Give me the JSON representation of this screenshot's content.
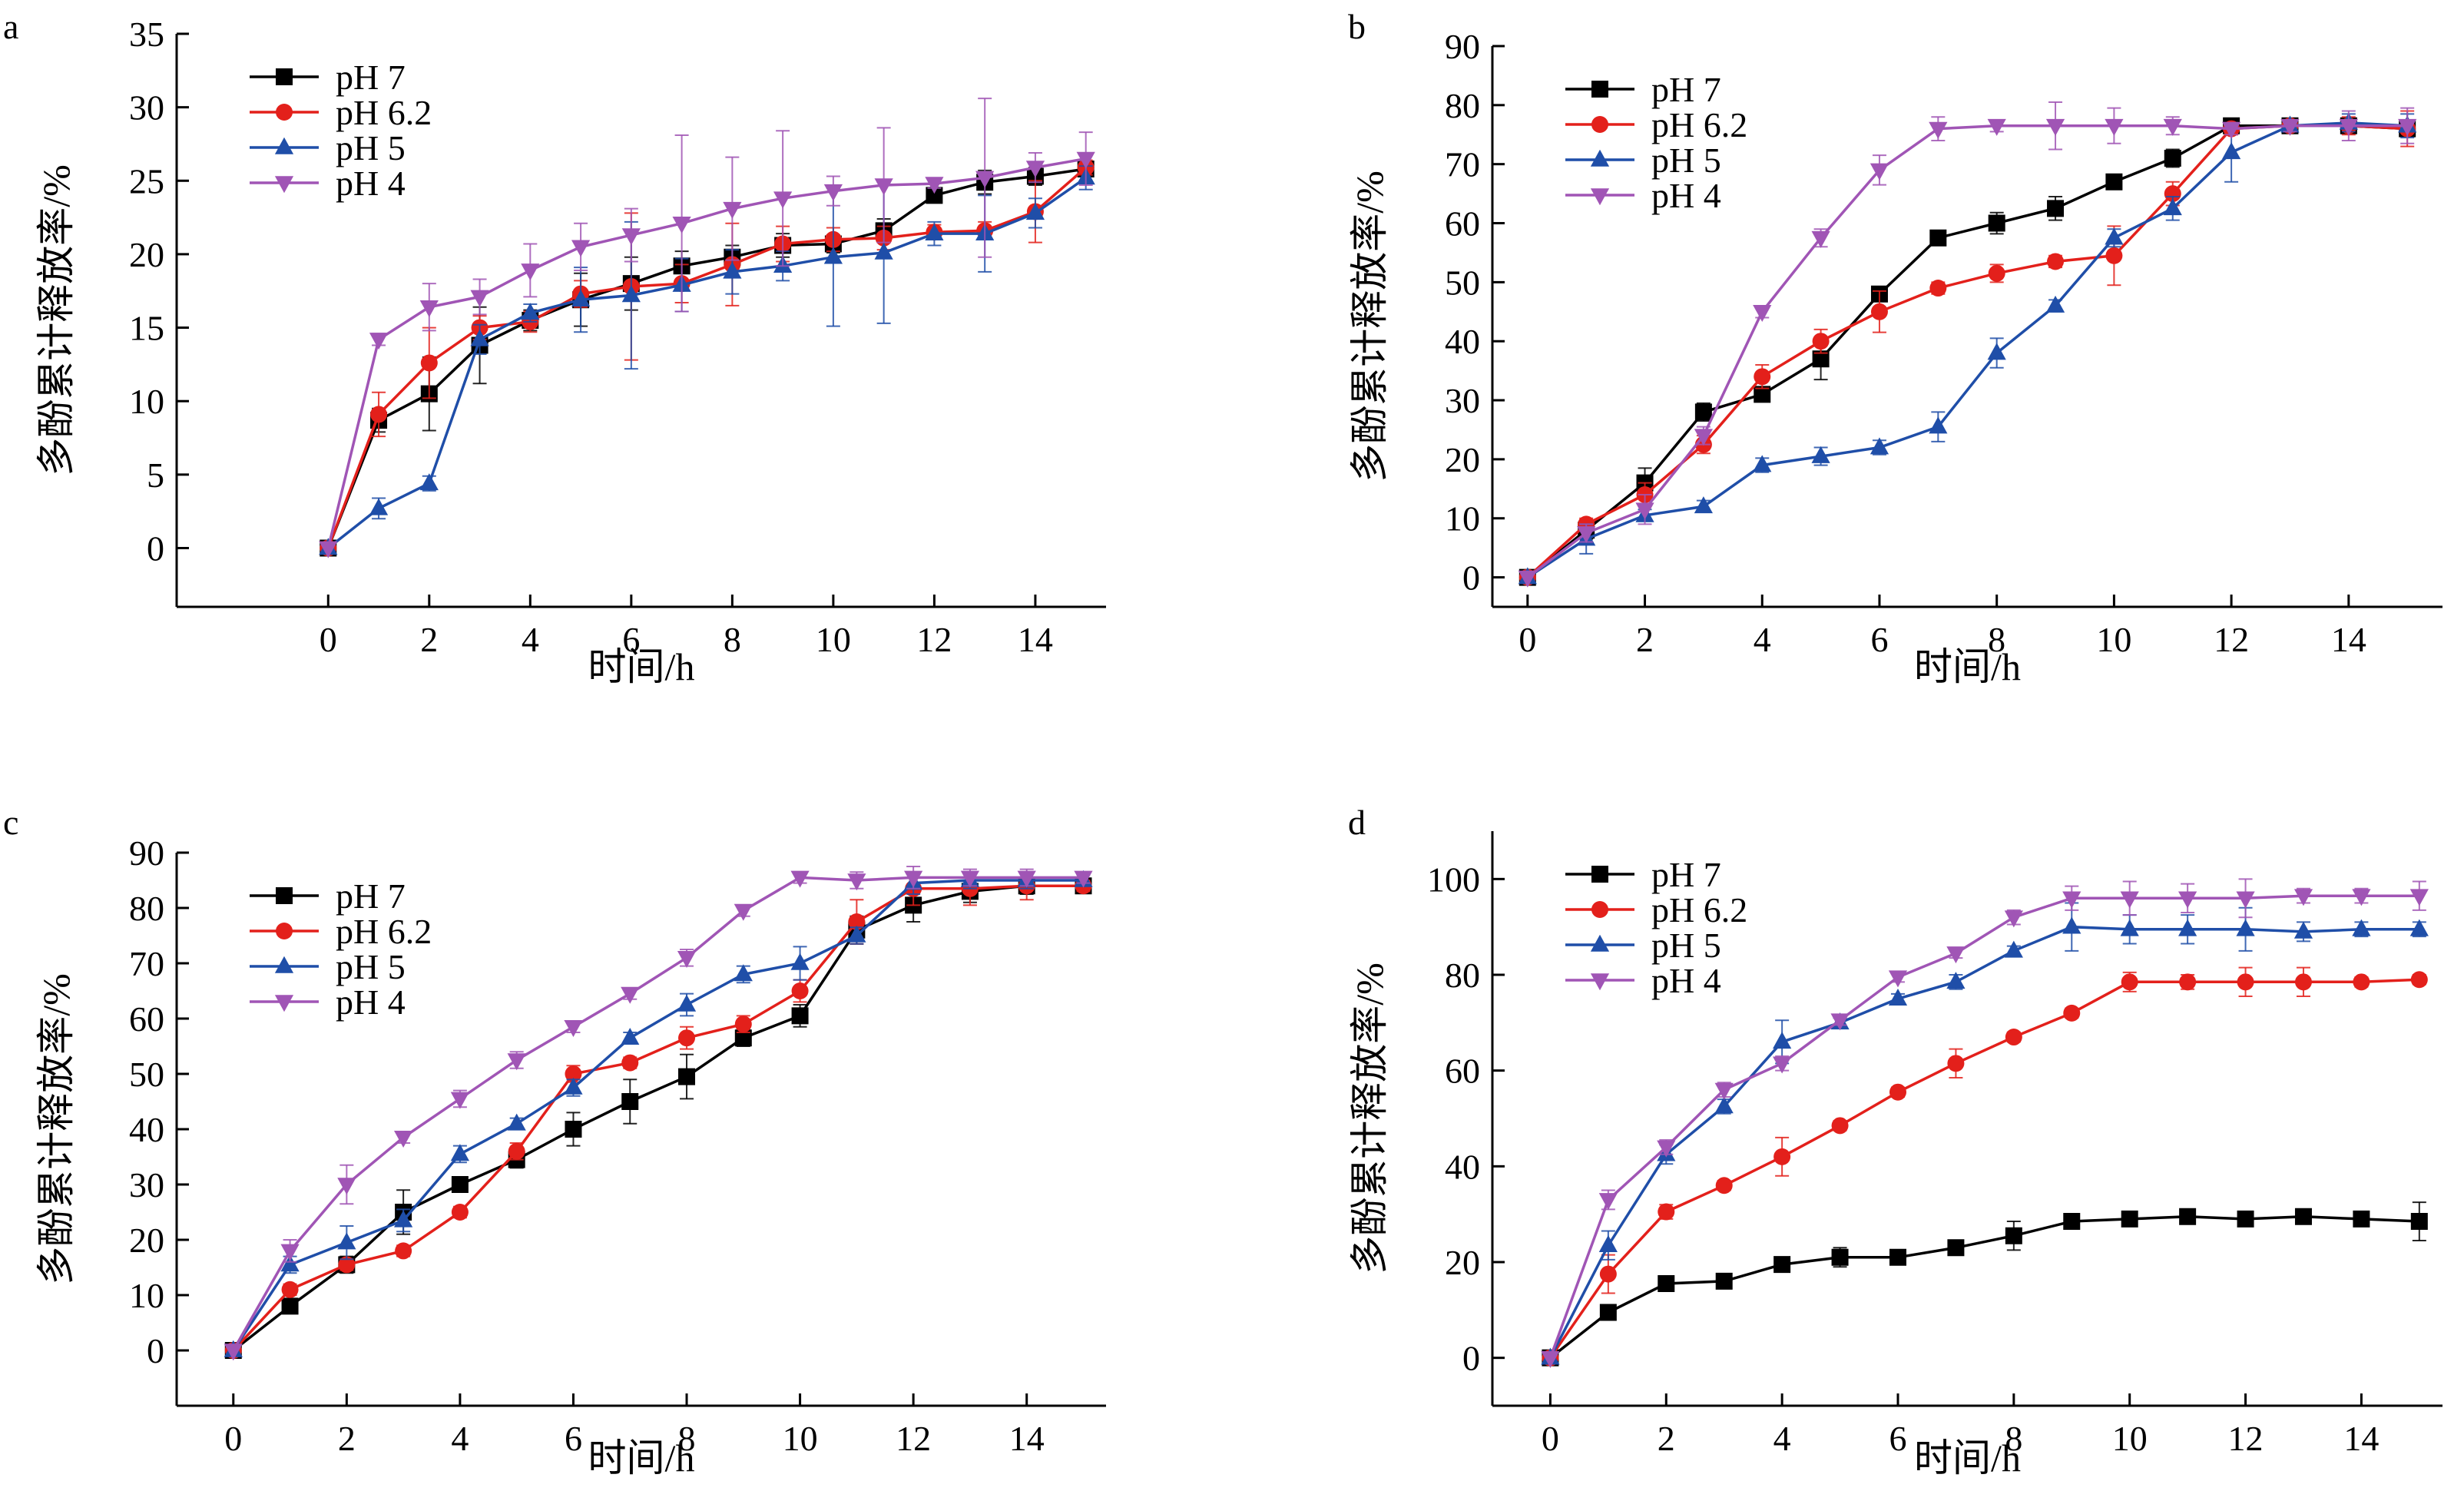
{
  "figure": {
    "panels": [
      "a",
      "b",
      "c",
      "d"
    ]
  },
  "chart_data": [
    {
      "type": "line",
      "panel_label": "a",
      "xlabel": "时间/h",
      "ylabel": "多酚累计释放率/%",
      "xlim": [
        -3,
        15.4
      ],
      "ylim": [
        -4,
        35
      ],
      "xticks": [
        0,
        2,
        4,
        6,
        8,
        10,
        12,
        14
      ],
      "yticks": [
        0,
        5,
        10,
        15,
        20,
        25,
        30,
        35
      ],
      "legend_position": "top-left",
      "x": [
        0,
        1,
        2,
        3,
        4,
        5,
        6,
        7,
        8,
        9,
        10,
        11,
        12,
        13,
        14,
        15
      ],
      "series": [
        {
          "name": "pH 7",
          "color": "#000000",
          "marker": "square",
          "values": [
            0,
            8.7,
            10.5,
            13.8,
            15.5,
            16.9,
            18.0,
            19.2,
            19.8,
            20.6,
            20.7,
            21.6,
            24.0,
            24.9,
            25.3,
            25.8
          ],
          "errors": [
            0,
            0.8,
            2.5,
            2.6,
            0.7,
            1.8,
            1.8,
            1.0,
            0.8,
            0.8,
            0.6,
            0.8,
            0.5,
            0.8,
            0.6,
            0.5
          ]
        },
        {
          "name": "pH 6.2",
          "color": "#e3201b",
          "marker": "circle",
          "values": [
            0,
            9.1,
            12.6,
            15.0,
            15.4,
            17.3,
            17.8,
            18.0,
            19.3,
            20.7,
            21.0,
            21.1,
            21.5,
            21.6,
            22.9,
            25.9
          ],
          "errors": [
            0,
            1.5,
            2.4,
            0.8,
            0.7,
            0.9,
            5.0,
            1.3,
            2.8,
            1.2,
            0.8,
            0.8,
            0.5,
            0.6,
            2.1,
            0.5
          ]
        },
        {
          "name": "pH 5",
          "color": "#1f4ea8",
          "marker": "triangle-up",
          "values": [
            0,
            2.7,
            4.4,
            14.2,
            16.0,
            16.9,
            17.2,
            17.9,
            18.8,
            19.2,
            19.8,
            20.1,
            21.4,
            21.4,
            22.8,
            25.2
          ],
          "errors": [
            0,
            0.7,
            0.5,
            1.0,
            0.6,
            2.2,
            5.0,
            1.8,
            1.5,
            1.0,
            4.7,
            4.8,
            0.8,
            2.6,
            1.0,
            0.8
          ]
        },
        {
          "name": "pH 4",
          "color": "#a055b5",
          "marker": "triangle-down",
          "values": [
            0,
            14.2,
            16.4,
            17.1,
            18.9,
            20.5,
            21.3,
            22.1,
            23.1,
            23.8,
            24.3,
            24.7,
            24.8,
            25.2,
            25.9,
            26.5
          ],
          "errors": [
            0,
            0.4,
            1.6,
            1.2,
            1.8,
            1.6,
            1.8,
            6.0,
            3.5,
            4.6,
            1.0,
            3.9,
            0.3,
            5.4,
            1.0,
            1.8
          ]
        }
      ]
    },
    {
      "type": "line",
      "panel_label": "b",
      "xlabel": "时间/h",
      "ylabel": "多酚累计释放率/%",
      "xlim": [
        -0.6,
        15.6
      ],
      "ylim": [
        -5,
        90
      ],
      "xticks": [
        0,
        2,
        4,
        6,
        8,
        10,
        12,
        14
      ],
      "yticks": [
        0,
        10,
        20,
        30,
        40,
        50,
        60,
        70,
        80,
        90
      ],
      "legend_position": "top-left",
      "x": [
        0,
        1,
        2,
        3,
        4,
        5,
        6,
        7,
        8,
        9,
        10,
        11,
        12,
        13,
        14,
        15
      ],
      "series": [
        {
          "name": "pH 7",
          "color": "#000000",
          "marker": "square",
          "values": [
            0,
            8,
            16,
            28,
            31,
            37,
            48,
            57.5,
            60,
            62.5,
            67,
            71,
            76.5,
            76.5,
            76.5,
            76
          ],
          "errors": [
            0,
            1.5,
            2.5,
            1.5,
            1.2,
            3.5,
            1.2,
            1.2,
            1.8,
            2.0,
            1.0,
            1.5,
            1.0,
            0.8,
            1.0,
            1.0
          ]
        },
        {
          "name": "pH 6.2",
          "color": "#e3201b",
          "marker": "circle",
          "values": [
            0,
            9,
            14,
            22.5,
            34,
            40,
            45,
            49,
            51.5,
            53.5,
            54.5,
            65,
            76,
            76.5,
            76.5,
            76
          ],
          "errors": [
            0,
            1.0,
            2.0,
            1.5,
            2.0,
            2.0,
            3.5,
            1.0,
            1.5,
            1.0,
            5.0,
            2.0,
            1.0,
            1.0,
            1.5,
            3.0
          ]
        },
        {
          "name": "pH 5",
          "color": "#1f4ea8",
          "marker": "triangle-up",
          "values": [
            0,
            6.5,
            10.5,
            12,
            19,
            20.5,
            22,
            25.5,
            38,
            46,
            57.5,
            62.5,
            72,
            76.5,
            77,
            76.5
          ],
          "errors": [
            0,
            2.5,
            1.0,
            1.0,
            1.2,
            1.5,
            1.2,
            2.5,
            2.5,
            1.0,
            1.5,
            2.0,
            5.0,
            1.0,
            1.5,
            2.0
          ]
        },
        {
          "name": "pH 4",
          "color": "#a055b5",
          "marker": "triangle-down",
          "values": [
            0,
            7.5,
            11.5,
            24,
            45,
            57.5,
            69,
            76,
            76.5,
            76.5,
            76.5,
            76.5,
            76,
            76.5,
            76.5,
            76.5
          ],
          "errors": [
            0,
            1.5,
            2.5,
            1.5,
            1.0,
            1.5,
            2.5,
            2.0,
            1.0,
            4.0,
            3.0,
            1.5,
            1.0,
            1.0,
            2.5,
            3.0
          ]
        }
      ]
    },
    {
      "type": "line",
      "panel_label": "c",
      "xlabel": "时间/h",
      "ylabel": "多酚累计释放率/%",
      "xlim": [
        -1,
        15.4
      ],
      "ylim": [
        -10,
        90
      ],
      "xticks": [
        0,
        2,
        4,
        6,
        8,
        10,
        12,
        14
      ],
      "yticks": [
        0,
        10,
        20,
        30,
        40,
        50,
        60,
        70,
        80,
        90
      ],
      "legend_position": "top-left",
      "x": [
        0,
        1,
        2,
        3,
        4,
        5,
        6,
        7,
        8,
        9,
        10,
        11,
        12,
        13,
        14,
        15
      ],
      "series": [
        {
          "name": "pH 7",
          "color": "#000000",
          "marker": "square",
          "values": [
            0,
            8,
            15.5,
            25,
            30,
            34.5,
            40,
            45,
            49.5,
            56.5,
            60.5,
            76,
            80.5,
            83,
            84,
            84
          ],
          "errors": [
            0,
            1.0,
            1.5,
            4.0,
            1.0,
            1.5,
            3.0,
            4.0,
            4.0,
            1.5,
            2.0,
            2.5,
            3.0,
            2.0,
            1.5,
            1.0
          ]
        },
        {
          "name": "pH 6.2",
          "color": "#e3201b",
          "marker": "circle",
          "values": [
            0,
            11,
            15.5,
            18,
            25,
            36,
            50,
            52,
            56.5,
            59,
            65,
            77.5,
            83.5,
            83.5,
            84,
            84
          ],
          "errors": [
            0,
            1.0,
            1.0,
            1.0,
            1.0,
            1.5,
            1.5,
            1.0,
            2.0,
            1.5,
            2.0,
            4.0,
            3.0,
            3.0,
            2.5,
            1.0
          ]
        },
        {
          "name": "pH 5",
          "color": "#1f4ea8",
          "marker": "triangle-up",
          "values": [
            0,
            15.5,
            19.5,
            23.5,
            35.5,
            41,
            47.5,
            56.5,
            62.5,
            68,
            70,
            75,
            84.5,
            85,
            85,
            85
          ],
          "errors": [
            0,
            1.5,
            3.0,
            2.0,
            1.5,
            1.0,
            1.5,
            1.0,
            2.0,
            1.5,
            3.0,
            1.5,
            2.0,
            1.5,
            1.5,
            1.0
          ]
        },
        {
          "name": "pH 4",
          "color": "#a055b5",
          "marker": "triangle-down",
          "values": [
            0,
            18,
            30,
            38.5,
            45.5,
            52.5,
            58.5,
            64.5,
            71,
            79.5,
            85.5,
            85,
            85.5,
            85.5,
            85.5,
            85.5
          ],
          "errors": [
            0,
            2.0,
            3.5,
            1.0,
            1.5,
            1.5,
            1.0,
            1.0,
            1.5,
            1.0,
            1.0,
            1.5,
            2.0,
            1.5,
            1.5,
            1.0
          ]
        }
      ]
    },
    {
      "type": "line",
      "panel_label": "d",
      "xlabel": "时间/h",
      "ylabel": "多酚累计释放率/%",
      "xlim": [
        -1,
        15.4
      ],
      "ylim": [
        -10,
        110
      ],
      "xticks": [
        0,
        2,
        4,
        6,
        8,
        10,
        12,
        14
      ],
      "yticks": [
        0,
        20,
        40,
        60,
        80,
        100
      ],
      "legend_position": "top-left",
      "x": [
        0,
        1,
        2,
        3,
        4,
        5,
        6,
        7,
        8,
        9,
        10,
        11,
        12,
        13,
        14,
        15
      ],
      "series": [
        {
          "name": "pH 7",
          "color": "#000000",
          "marker": "square",
          "values": [
            0,
            9.5,
            15.5,
            16,
            19.5,
            21,
            21,
            23,
            25.5,
            28.5,
            29,
            29.5,
            29,
            29.5,
            29,
            28.5
          ],
          "errors": [
            0,
            1.5,
            1.5,
            1.0,
            1.5,
            2.0,
            1.5,
            1.5,
            3.0,
            1.0,
            1.0,
            1.0,
            1.0,
            1.0,
            1.0,
            4.0
          ]
        },
        {
          "name": "pH 6.2",
          "color": "#e3201b",
          "marker": "circle",
          "values": [
            0,
            17.5,
            30.5,
            36,
            42,
            48.5,
            55.5,
            61.5,
            67,
            72,
            78.5,
            78.5,
            78.5,
            78.5,
            78.5,
            79
          ],
          "errors": [
            0,
            4.0,
            1.5,
            1.0,
            4.0,
            1.0,
            1.0,
            3.0,
            1.0,
            1.0,
            2.0,
            1.5,
            3.0,
            3.0,
            1.0,
            1.0
          ]
        },
        {
          "name": "pH 5",
          "color": "#1f4ea8",
          "marker": "triangle-up",
          "values": [
            0,
            23.5,
            42.5,
            52.5,
            66,
            70,
            75,
            78.5,
            85,
            90,
            89.5,
            89.5,
            89.5,
            89,
            89.5,
            89.5
          ],
          "errors": [
            0,
            3.0,
            2.0,
            1.5,
            4.5,
            1.0,
            1.0,
            1.5,
            1.0,
            5.0,
            3.0,
            3.0,
            4.5,
            2.0,
            1.5,
            1.5
          ]
        },
        {
          "name": "pH 4",
          "color": "#a055b5",
          "marker": "triangle-down",
          "values": [
            0,
            33,
            44,
            56,
            61.5,
            70.5,
            79.5,
            84.5,
            92,
            96,
            96,
            96,
            96,
            96.5,
            96.5,
            96.5
          ],
          "errors": [
            0,
            2.0,
            1.5,
            1.5,
            1.5,
            1.0,
            1.0,
            1.0,
            1.5,
            2.5,
            3.5,
            3.0,
            4.0,
            1.5,
            1.5,
            3.0
          ]
        }
      ]
    }
  ]
}
